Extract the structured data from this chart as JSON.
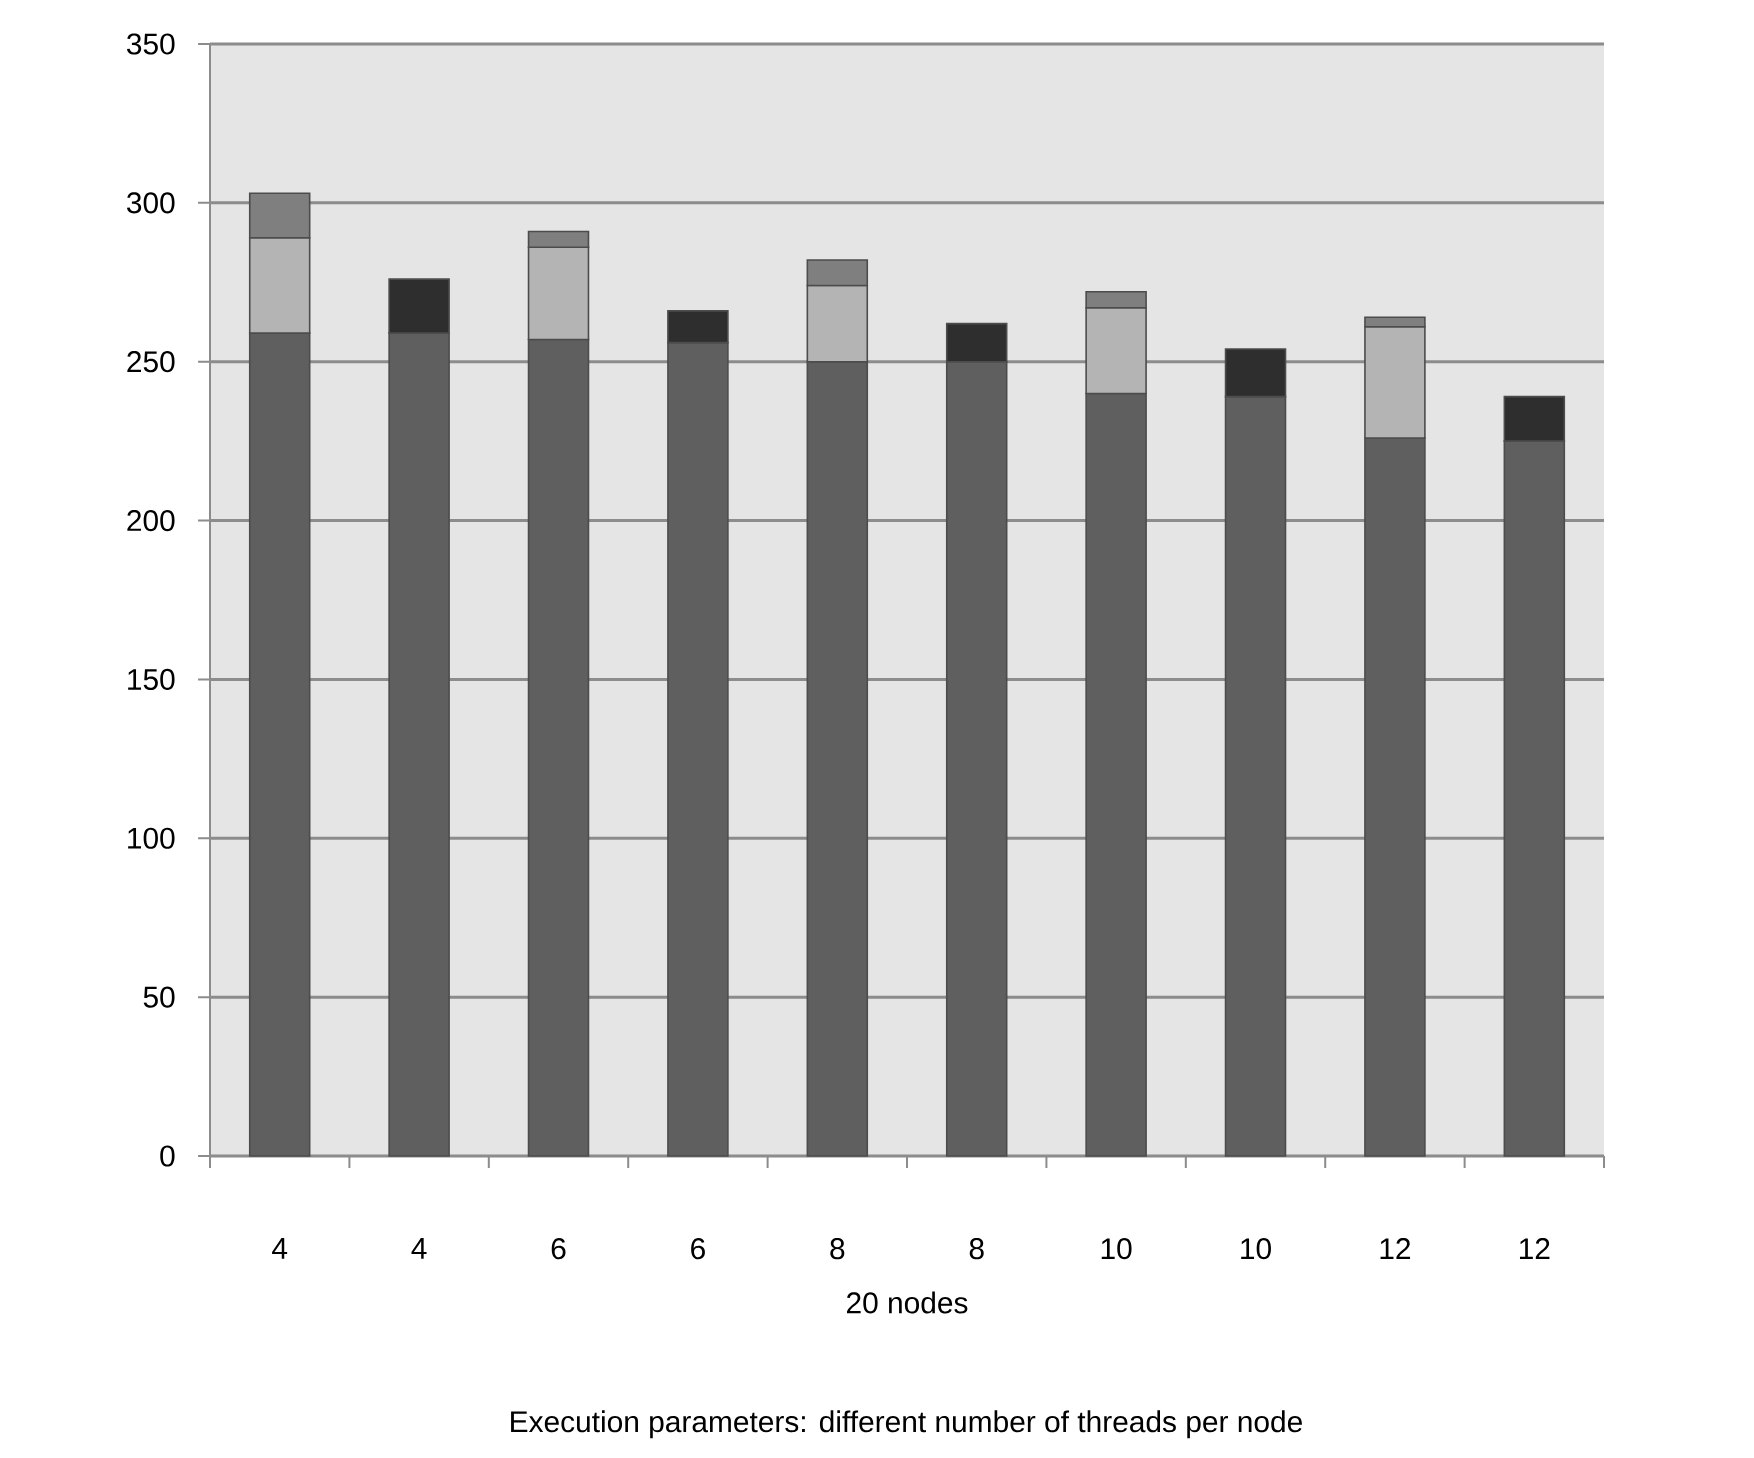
{
  "chart_data": {
    "type": "bar",
    "stacked": true,
    "xlabel": "20 nodes",
    "annotations": [
      "Execution parameters: different number of threads per node"
    ],
    "categories": [
      "4",
      "4",
      "6",
      "6",
      "8",
      "8",
      "10",
      "10",
      "12",
      "12"
    ],
    "series": [
      {
        "color": "#5f5f5f",
        "values": [
          259,
          259,
          257,
          256,
          250,
          250,
          240,
          239,
          226,
          225
        ]
      },
      {
        "color": "#b4b4b4",
        "values": [
          30,
          null,
          29,
          null,
          24,
          null,
          27,
          null,
          35,
          null
        ]
      },
      {
        "color": "#7f7f7f",
        "values": [
          14,
          null,
          5,
          null,
          8,
          null,
          5,
          null,
          3,
          null
        ]
      },
      {
        "color": "#2e2e2e",
        "values": [
          null,
          17,
          null,
          10,
          null,
          12,
          null,
          15,
          null,
          14
        ]
      }
    ],
    "ylim": [
      0,
      350
    ],
    "yticks": [
      0,
      50,
      100,
      150,
      200,
      250,
      300,
      350
    ],
    "grid": "y"
  }
}
